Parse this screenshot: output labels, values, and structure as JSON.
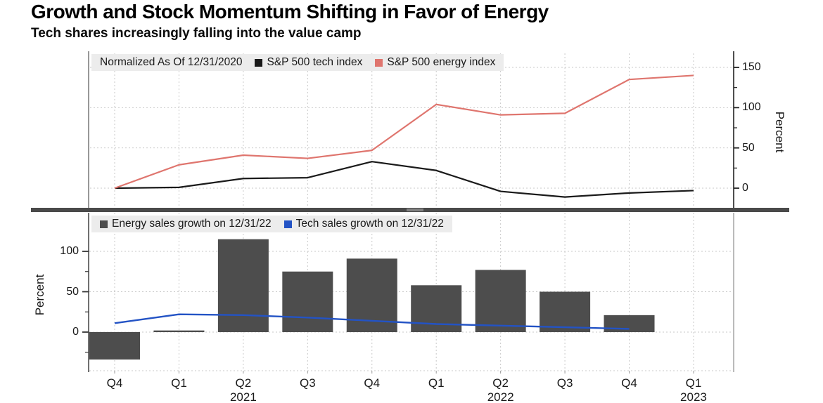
{
  "header": {
    "title": "Growth and Stock Momentum Shifting in Favor of Energy",
    "subtitle": "Tech shares increasingly falling into the value camp"
  },
  "colors": {
    "tech_index": "#1a1a1a",
    "energy_index": "#df756e",
    "energy_bars": "#4d4d4d",
    "tech_sales": "#2353c5",
    "legend_bg": "#ececec",
    "grid": "#c9c9c9",
    "axis": "#333333",
    "separator": "#4a4a4a"
  },
  "chart_data": [
    {
      "id": "index-lines",
      "type": "line",
      "note": "Normalized As Of 12/31/2020",
      "categories": [
        "Q4 2020",
        "Q1 2021",
        "Q2 2021",
        "Q3 2021",
        "Q4 2021",
        "Q1 2022",
        "Q2 2022",
        "Q3 2022",
        "Q4 2022",
        "Q1 2023"
      ],
      "series": [
        {
          "name": "S&P 500 tech index",
          "color": "#1a1a1a",
          "values": [
            0,
            1,
            12,
            13,
            33,
            22,
            -4,
            -11,
            -6,
            -3
          ]
        },
        {
          "name": "S&P 500 energy index",
          "color": "#df756e",
          "values": [
            0,
            29,
            41,
            37,
            47,
            104,
            91,
            93,
            135,
            140
          ]
        }
      ],
      "ylabel": "Percent",
      "ylabel_side": "right",
      "yticks": [
        0,
        50,
        100,
        150
      ],
      "yticks_minor": [
        25,
        75,
        125
      ],
      "ylim": [
        -24,
        169
      ],
      "grid": true,
      "legend_position": "top-left"
    },
    {
      "id": "sales-growth",
      "type": "bar+line",
      "categories": [
        "Q4 2020",
        "Q1 2021",
        "Q2 2021",
        "Q3 2021",
        "Q4 2021",
        "Q1 2022",
        "Q2 2022",
        "Q3 2022",
        "Q4 2022",
        "Q1 2023"
      ],
      "series": [
        {
          "name": "Energy sales growth on 12/31/22",
          "type": "bar",
          "color": "#4d4d4d",
          "values": [
            -34,
            2,
            115,
            75,
            91,
            58,
            77,
            50,
            21,
            null
          ]
        },
        {
          "name": "Tech sales growth on 12/31/22",
          "type": "line",
          "color": "#2353c5",
          "values": [
            11,
            22,
            21,
            18,
            14,
            10,
            8,
            6,
            4,
            null
          ]
        }
      ],
      "ylabel": "Percent",
      "ylabel_side": "left",
      "yticks": [
        0,
        50,
        100
      ],
      "yticks_minor": [
        -25,
        25,
        75
      ],
      "ylim": [
        -48,
        118
      ],
      "grid": true,
      "legend_position": "top-left"
    }
  ],
  "x_axis": {
    "quarter_labels": [
      "Q4",
      "Q1",
      "Q2",
      "Q3",
      "Q4",
      "Q1",
      "Q2",
      "Q3",
      "Q4",
      "Q1"
    ],
    "year_labels": [
      {
        "index": 2,
        "label": "2021"
      },
      {
        "index": 6,
        "label": "2022"
      },
      {
        "index": 9,
        "label": "2023"
      }
    ]
  }
}
